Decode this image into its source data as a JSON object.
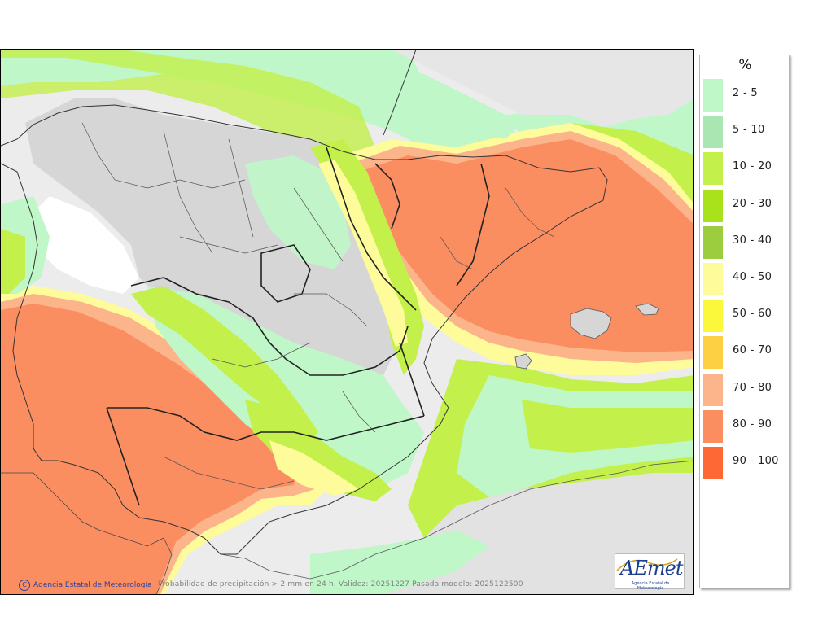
{
  "legend": {
    "title": "%",
    "items": [
      {
        "label": "2 - 5",
        "color": "#bff7c8"
      },
      {
        "label": "5 - 10",
        "color": "#a9e6b1"
      },
      {
        "label": "10 - 20",
        "color": "#c3f04a"
      },
      {
        "label": "20 - 30",
        "color": "#a9e21a"
      },
      {
        "label": "30 - 40",
        "color": "#9ccd3e"
      },
      {
        "label": "40 - 50",
        "color": "#fdfb9a"
      },
      {
        "label": "50 - 60",
        "color": "#fbf83c"
      },
      {
        "label": "60 - 70",
        "color": "#fdd043"
      },
      {
        "label": "70 - 80",
        "color": "#fcb48a"
      },
      {
        "label": "80 - 90",
        "color": "#fb8e61"
      },
      {
        "label": "90 - 100",
        "color": "#fd6835"
      }
    ]
  },
  "footer": {
    "credit": "Agencia Estatal de Meteorología",
    "copyright_symbol": "C",
    "caption": "Probabilidad de precipitación > 2 mm en 24 h. Validez: 20251227 Pasada modelo: 2025122500"
  },
  "logo": {
    "word": "AEmet",
    "subtitle": "Agencia Estatal de Meteorología"
  }
}
